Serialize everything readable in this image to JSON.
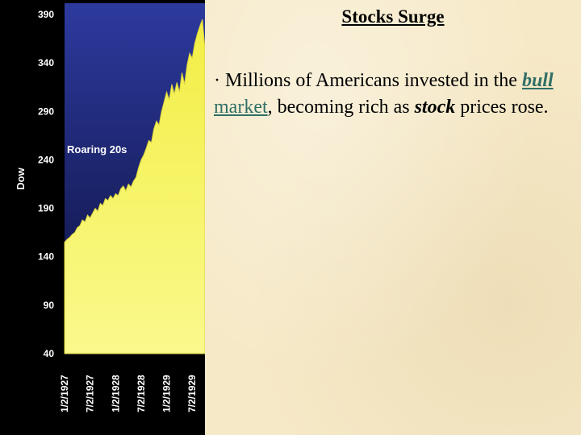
{
  "slide": {
    "title": "Stocks Surge",
    "bullet": {
      "marker": "·",
      "text_before": " Millions of Americans invested in the ",
      "link_word_1": "bull",
      "link_word_2": " market",
      "text_middle": ", becoming rich as ",
      "emphasis": "stock",
      "text_after": " prices rose."
    }
  },
  "chart_data": {
    "type": "area",
    "title": "",
    "xlabel": "",
    "ylabel": "Dow",
    "ylim": [
      40,
      390
    ],
    "y_ticks": [
      390,
      340,
      290,
      240,
      190,
      140,
      90,
      40
    ],
    "x_tick_labels": [
      "1/2/1927",
      "7/2/1927",
      "1/2/1928",
      "7/2/1928",
      "1/2/1929",
      "7/2/1929"
    ],
    "x_tick_positions": [
      0,
      0.5,
      1,
      1.5,
      2,
      2.5
    ],
    "annotation": "Roaring 20s",
    "grid": false,
    "legend": "none",
    "colors": {
      "fill": "#f7f55a",
      "background_top": "#2d3a9e",
      "background_bottom": "#0c0f3a",
      "panel": "#000000"
    },
    "x": [
      0,
      0.05,
      0.1,
      0.15,
      0.2,
      0.25,
      0.3,
      0.35,
      0.4,
      0.45,
      0.5,
      0.55,
      0.6,
      0.65,
      0.7,
      0.75,
      0.8,
      0.85,
      0.9,
      0.95,
      1.0,
      1.05,
      1.1,
      1.15,
      1.2,
      1.25,
      1.3,
      1.35,
      1.4,
      1.45,
      1.5,
      1.55,
      1.6,
      1.65,
      1.7,
      1.75,
      1.8,
      1.85,
      1.9,
      1.95,
      2.0,
      2.05,
      2.1,
      2.15,
      2.2,
      2.25,
      2.3,
      2.35,
      2.4,
      2.45,
      2.5,
      2.55,
      2.6,
      2.65,
      2.7,
      2.75
    ],
    "values": [
      155,
      158,
      160,
      163,
      165,
      170,
      172,
      178,
      176,
      183,
      180,
      185,
      190,
      187,
      195,
      193,
      200,
      198,
      203,
      200,
      205,
      203,
      210,
      213,
      208,
      215,
      212,
      218,
      222,
      232,
      240,
      245,
      252,
      260,
      258,
      272,
      280,
      276,
      290,
      300,
      310,
      302,
      318,
      308,
      320,
      310,
      330,
      318,
      338,
      350,
      345,
      360,
      370,
      378,
      385,
      355
    ]
  }
}
